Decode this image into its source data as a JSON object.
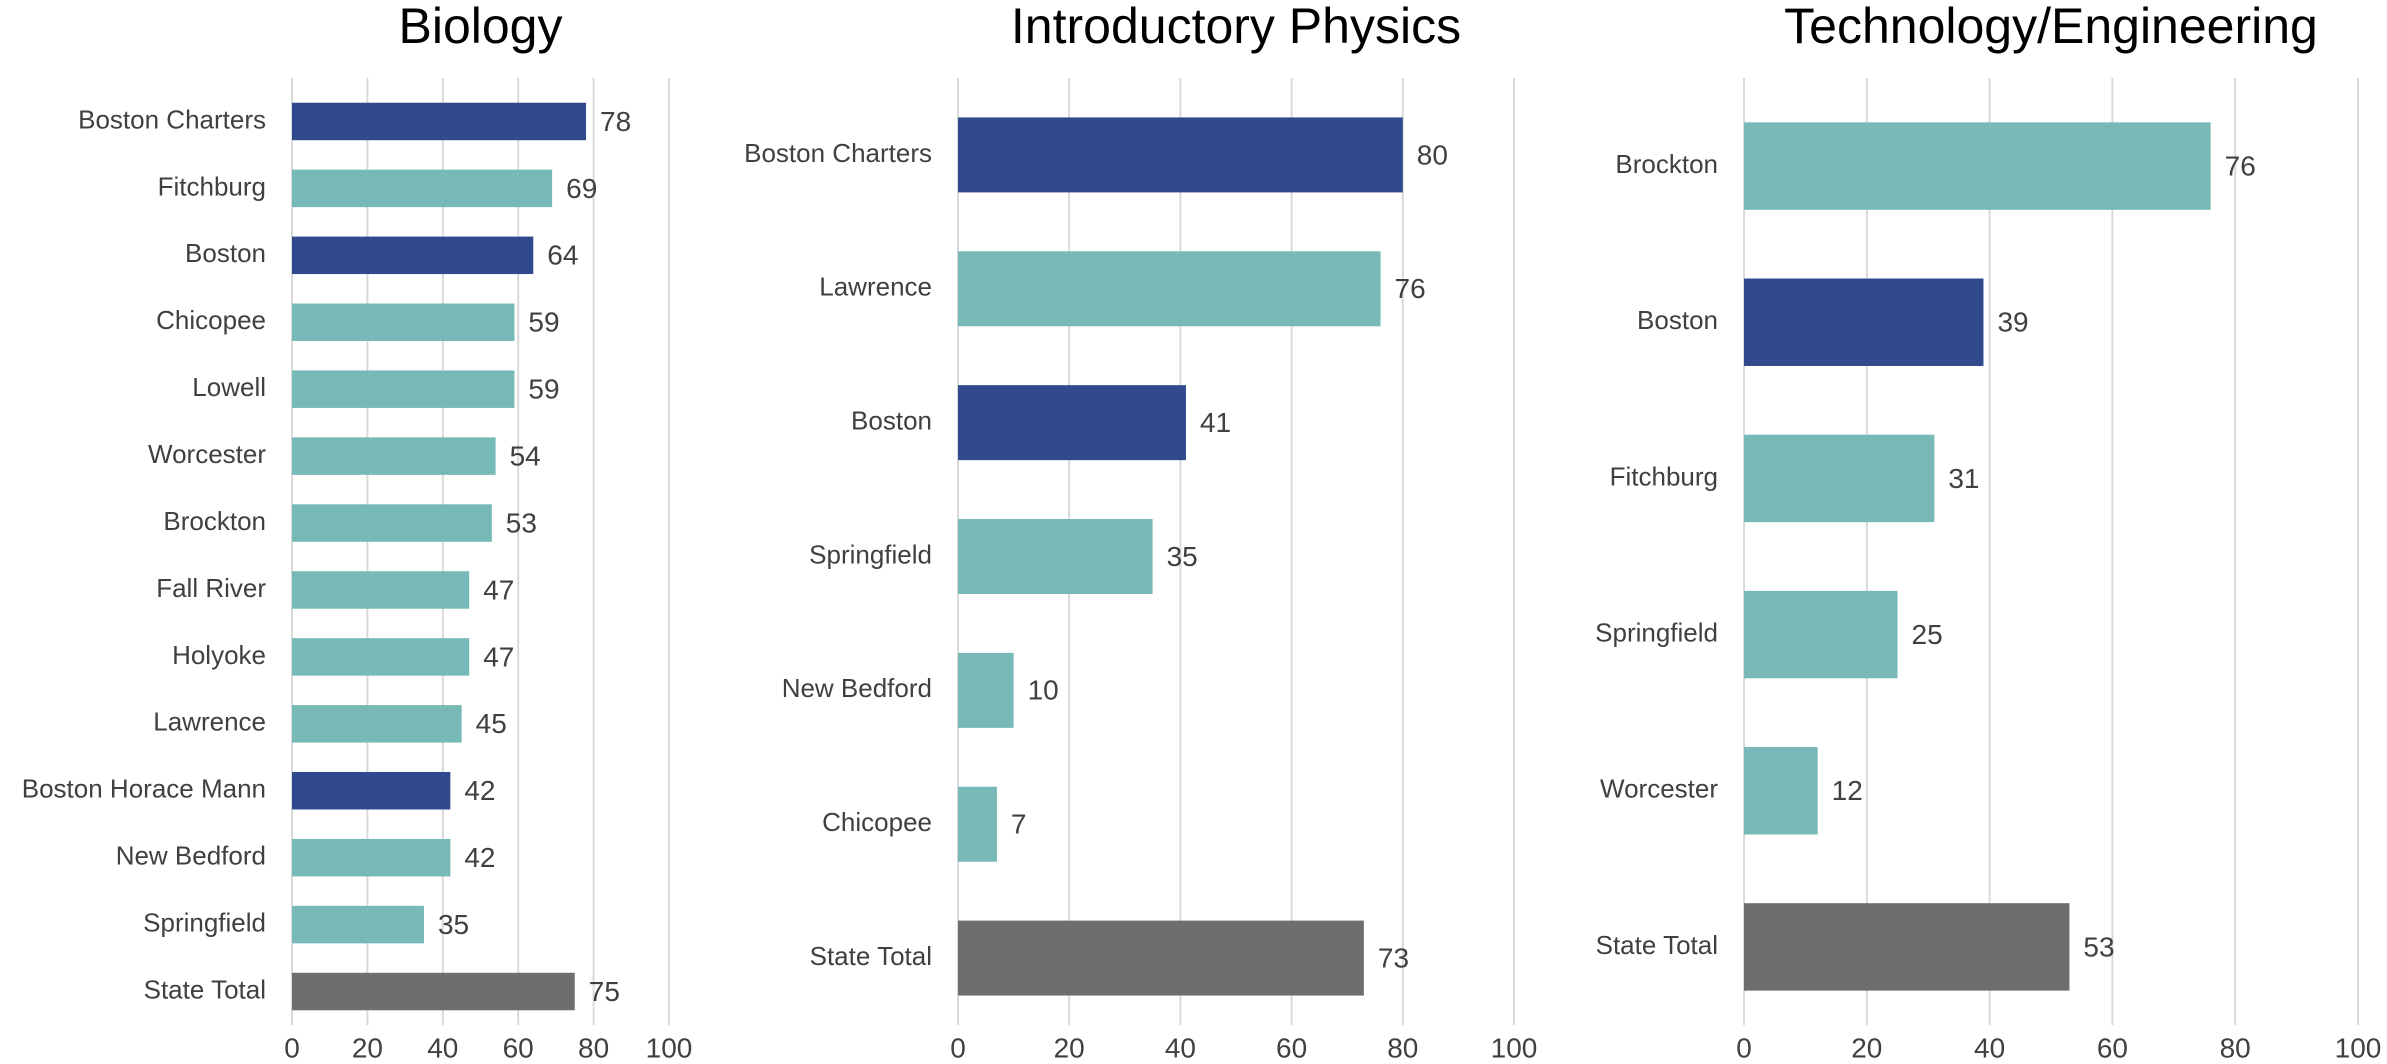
{
  "chart_data": [
    {
      "type": "bar",
      "orientation": "horizontal",
      "title": "Biology",
      "categories": [
        "Boston Charters",
        "Fitchburg",
        "Boston",
        "Chicopee",
        "Lowell",
        "Worcester",
        "Brockton",
        "Fall River",
        "Holyoke",
        "Lawrence",
        "Boston Horace Mann",
        "New Bedford",
        "Springfield",
        "State Total"
      ],
      "values": [
        78,
        69,
        64,
        59,
        59,
        54,
        53,
        47,
        47,
        45,
        42,
        42,
        35,
        75
      ],
      "colors": [
        "#314a8e",
        "#76b9b7",
        "#314a8e",
        "#76b9b7",
        "#76b9b7",
        "#76b9b7",
        "#76b9b7",
        "#76b9b7",
        "#76b9b7",
        "#76b9b7",
        "#314a8e",
        "#76b9b7",
        "#76b9b7",
        "#6d6e70"
      ],
      "xlim": [
        0,
        100
      ],
      "xticks": [
        0,
        20,
        40,
        60,
        80,
        100
      ],
      "grid": true
    },
    {
      "type": "bar",
      "orientation": "horizontal",
      "title": "Introductory Physics",
      "categories": [
        "Boston Charters",
        "Lawrence",
        "Boston",
        "Springfield",
        "New Bedford",
        "Chicopee",
        "State Total"
      ],
      "values": [
        80,
        76,
        41,
        35,
        10,
        7,
        73
      ],
      "colors": [
        "#314a8e",
        "#76b9b7",
        "#314a8e",
        "#76b9b7",
        "#76b9b7",
        "#76b9b7",
        "#6d6e70"
      ],
      "xlim": [
        0,
        100
      ],
      "xticks": [
        0,
        20,
        40,
        60,
        80,
        100
      ],
      "grid": true
    },
    {
      "type": "bar",
      "orientation": "horizontal",
      "title": "Technology/Engineering",
      "categories": [
        "Brockton",
        "Boston",
        "Fitchburg",
        "Springfield",
        "Worcester",
        "State Total"
      ],
      "values": [
        76,
        39,
        31,
        25,
        12,
        53
      ],
      "colors": [
        "#76b9b7",
        "#314a8e",
        "#76b9b7",
        "#76b9b7",
        "#76b9b7",
        "#6d6e70"
      ],
      "xlim": [
        0,
        100
      ],
      "xticks": [
        0,
        20,
        40,
        60,
        80,
        100
      ],
      "grid": true
    }
  ]
}
